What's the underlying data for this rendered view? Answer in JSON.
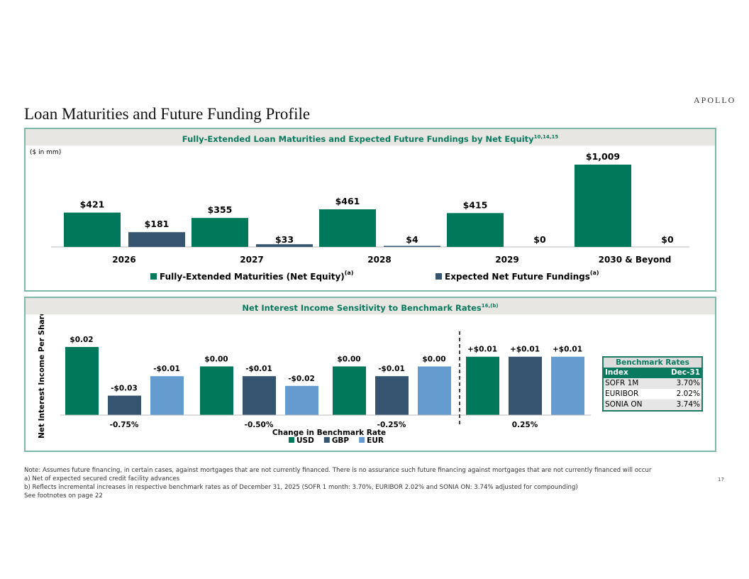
{
  "logo": "APOLLO",
  "title": "Loan Maturities and Future Funding Profile",
  "colors": {
    "green": "#00785A",
    "navy": "#34546F",
    "lightblue": "#659CCF",
    "header_bg": "#E8E6E3",
    "accent": "#0A7A5E"
  },
  "chart_data": [
    {
      "type": "bar",
      "title": "Fully-Extended Loan Maturities and Expected Future Fundings by Net Equity",
      "title_sup": "10,14,15",
      "subtitle": "($ in mm)",
      "categories": [
        "2026",
        "2027",
        "2028",
        "2029",
        "2030 & Beyond"
      ],
      "series": [
        {
          "name": "Fully-Extended Maturities (Net Equity)",
          "name_sup": "(a)",
          "values": [
            421,
            355,
            461,
            415,
            1009
          ],
          "labels": [
            "$421",
            "$355",
            "$461",
            "$415",
            "$1,009"
          ]
        },
        {
          "name": "Expected Net Future Fundings",
          "name_sup": "(a)",
          "values": [
            181,
            33,
            4,
            0,
            0
          ],
          "labels": [
            "$181",
            "$33",
            "$4",
            "$0",
            "$0"
          ]
        }
      ],
      "ylim": [
        0,
        1009
      ],
      "legend": "bottom",
      "grid": false
    },
    {
      "type": "bar",
      "title": "Net Interest Income Sensitivity to Benchmark Rates",
      "title_sup": "16,(b)",
      "categories": [
        "-0.75%",
        "-0.50%",
        "-0.25%",
        "0.25%"
      ],
      "xlabel": "Change in Benchmark Rate",
      "ylabel": "Net Interest Income Per Share",
      "series": [
        {
          "name": "USD",
          "values": [
            0.02,
            0.0,
            0.0,
            0.01
          ],
          "labels": [
            "$0.02",
            "$0.00",
            "$0.00",
            "+$0.01"
          ]
        },
        {
          "name": "GBP",
          "values": [
            -0.03,
            -0.01,
            -0.01,
            0.01
          ],
          "labels": [
            "-$0.03",
            "-$0.01",
            "-$0.01",
            "+$0.01"
          ]
        },
        {
          "name": "EUR",
          "values": [
            -0.01,
            -0.02,
            0.0,
            0.01
          ],
          "labels": [
            "-$0.01",
            "-$0.02",
            "$0.00",
            "+$0.01"
          ]
        }
      ],
      "ylim": [
        -0.05,
        0.02
      ],
      "legend": "bottom",
      "grid": false,
      "divider_between": [
        "-0.25%",
        "0.25%"
      ]
    }
  ],
  "benchmark_table": {
    "title": "Benchmark Rates",
    "headers": [
      "Index",
      "Dec-31"
    ],
    "rows": [
      [
        "SOFR 1M",
        "3.70%"
      ],
      [
        "EURIBOR",
        "2.02%"
      ],
      [
        "SONIA ON",
        "3.74%"
      ]
    ]
  },
  "notes": [
    "Note: Assumes future financing, in certain cases, against mortgages that are not currently financed. There is no assurance such future financing against mortgages that are not currently financed will occur",
    "a)    Net of expected secured credit facility advances",
    "b)    Reflects incremental increases in respective benchmark rates as of December 31, 2025 (SOFR 1 month: 3.70%, EURIBOR 2.02% and SONIA ON: 3.74% adjusted for compounding)",
    "See footnotes on page 22"
  ],
  "page_number": "17"
}
